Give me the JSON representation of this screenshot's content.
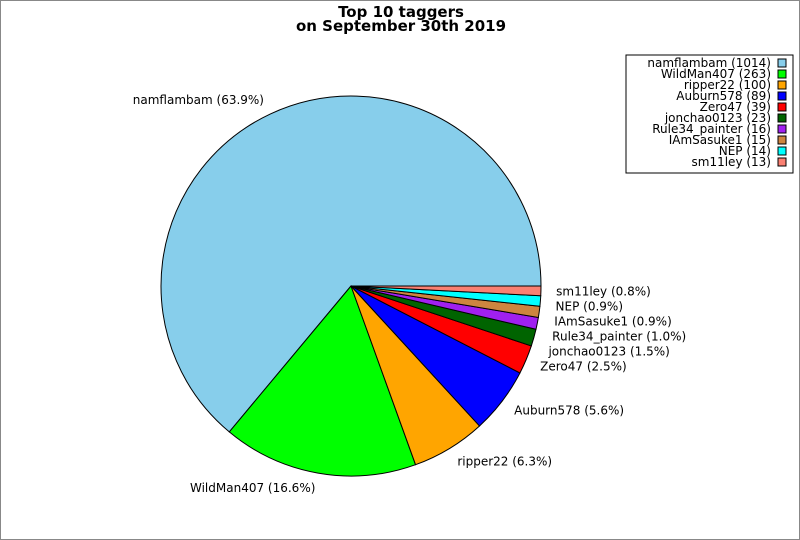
{
  "chart_data": {
    "type": "pie",
    "title": [
      "Top 10 taggers",
      "on September 30th 2019"
    ],
    "legend_placement": "top-right",
    "start_angle_deg": 0,
    "direction": "counterclockwise",
    "slices": [
      {
        "name": "namflambam",
        "value": 1014,
        "pct": "63.9%",
        "color": "#87ceeb"
      },
      {
        "name": "WildMan407",
        "value": 263,
        "pct": "16.6%",
        "color": "#00ff00"
      },
      {
        "name": "ripper22",
        "value": 100,
        "pct": "6.3%",
        "color": "#ffa500"
      },
      {
        "name": "Auburn578",
        "value": 89,
        "pct": "5.6%",
        "color": "#0000ff"
      },
      {
        "name": "Zero47",
        "value": 39,
        "pct": "2.5%",
        "color": "#ff0000"
      },
      {
        "name": "jonchao0123",
        "value": 23,
        "pct": "1.5%",
        "color": "#006400"
      },
      {
        "name": "Rule34_painter",
        "value": 16,
        "pct": "1.0%",
        "color": "#a020f0"
      },
      {
        "name": "IAmSasuke1",
        "value": 15,
        "pct": "0.9%",
        "color": "#cd853f"
      },
      {
        "name": "NEP",
        "value": 14,
        "pct": "0.9%",
        "color": "#00ffff"
      },
      {
        "name": "sm11ley",
        "value": 13,
        "pct": "0.8%",
        "color": "#fa8072"
      }
    ]
  }
}
